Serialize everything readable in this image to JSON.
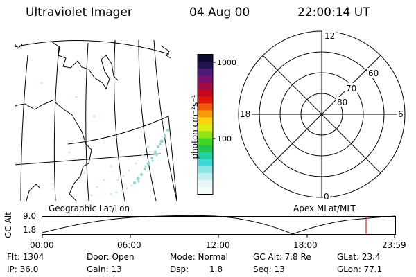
{
  "header": {
    "instrument": "Ultraviolet Imager",
    "date": "04 Aug 00",
    "time": "22:00:14 UT"
  },
  "colorbar": {
    "unit_label": "photon cm⁻²s⁻¹",
    "tick_1000": "1000",
    "tick_100": "100",
    "colors": [
      "#0b0b2e",
      "#24134f",
      "#4c1a78",
      "#7a1070",
      "#a00b45",
      "#c40a1a",
      "#e2150c",
      "#ef5a08",
      "#f89a08",
      "#fbd20e",
      "#d9ef12",
      "#8fe418",
      "#3fd41e",
      "#22c54d",
      "#22cfa0",
      "#3fd6d6",
      "#8ae4e4",
      "#c2efef",
      "#e6f7f7",
      "#f6fbfb"
    ]
  },
  "polar_plot": {
    "mlt_labels": {
      "top": "12",
      "left": "18",
      "right": "6",
      "bottom": "0"
    },
    "lat_labels": [
      "80",
      "70",
      "60"
    ]
  },
  "map_panel": {
    "label": "Geographic Lat/Lon"
  },
  "apex_label": "Apex MLat/MLT",
  "orbit_plot": {
    "y_axis_title": "GC Alt",
    "y_ticks": [
      "9.0",
      "1.8"
    ],
    "x_ticks": [
      "00:00",
      "06:00",
      "12:00",
      "18:00",
      "23:59"
    ],
    "marker_color": "#e02020"
  },
  "footer": {
    "flt": "Flt:  1304",
    "ip": "IP: 36.0",
    "door": "Door:  Open",
    "gain": "Gain:  13",
    "mode": "Mode:  Normal",
    "dsp_label": "Dsp:",
    "dsp_value": "1.8",
    "gcalt": "GC Alt:  7.8 Re",
    "seq": "Seq:  13",
    "glat": "GLat:  23.4",
    "glon": "GLon:  77.1"
  }
}
